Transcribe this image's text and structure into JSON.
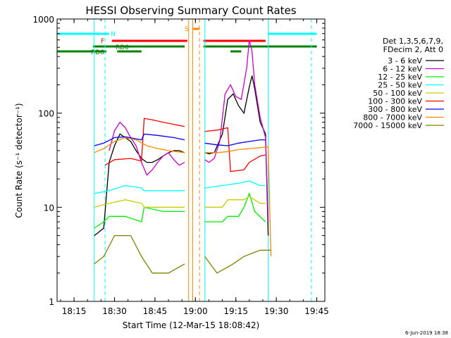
{
  "chart_data": {
    "type": "line",
    "title": "HESSI Observing Summary Count Rates",
    "xlabel": "Start Time (12-Mar-15 18:08:42)",
    "ylabel": "Count Rate (s⁻¹ detector⁻¹)",
    "y_scale": "log",
    "ylim": [
      1,
      1000
    ],
    "xlim": [
      "18:08:42",
      "19:48:00"
    ],
    "x_tick_labels": [
      "18:15",
      "18:30",
      "18:45",
      "19:00",
      "19:15",
      "19:30",
      "19:45"
    ],
    "y_tick_labels": [
      "1",
      "10",
      "100",
      "1000"
    ],
    "legend": {
      "position": "right",
      "header": [
        "Det 1,3,5,6,7,9,",
        "FDecim 2, Att 0"
      ],
      "entries": [
        {
          "label": "3 - 6 keV",
          "color": "#000000"
        },
        {
          "label": "6 - 12 keV",
          "color": "#cc00cc"
        },
        {
          "label": "12 - 25 keV",
          "color": "#00ee00"
        },
        {
          "label": "25 - 50 keV",
          "color": "#00ffff"
        },
        {
          "label": "50 - 100 keV",
          "color": "#cccc00"
        },
        {
          "label": "100 - 300 keV",
          "color": "#ff0000"
        },
        {
          "label": "300 - 800 keV",
          "color": "#0000ff"
        },
        {
          "label": "800 - 7000 keV",
          "color": "#ff8800"
        },
        {
          "label": "7000 - 15000 keV",
          "color": "#808000"
        }
      ]
    },
    "flag_labels": {
      "N": "N",
      "F": "F",
      "RD0": "RD0",
      "RD6": "RD6",
      "S": "S"
    },
    "flag_bars": [
      {
        "label": "N",
        "color": "#00ffff",
        "segments": [
          [
            "18:08:42",
            "18:28:00"
          ],
          [
            "19:27:00",
            "19:45:00"
          ]
        ]
      },
      {
        "label": "F",
        "color": "#ff0000",
        "segments": [
          [
            "18:29:00",
            "18:57:00"
          ],
          [
            "19:03:00",
            "19:26:00"
          ]
        ]
      },
      {
        "label": "RD0",
        "color": "#008000",
        "segments": [
          [
            "18:22:00",
            "18:56:00"
          ],
          [
            "19:03:00",
            "19:45:00"
          ]
        ]
      },
      {
        "label": "RD6",
        "color": "#008000",
        "segments": [
          [
            "18:08:42",
            "18:27:00"
          ],
          [
            "18:31:00",
            "18:40:00"
          ],
          [
            "19:13:00",
            "19:17:00"
          ]
        ]
      },
      {
        "label": "S",
        "color": "#ff8800",
        "segments": [
          [
            "18:59:00",
            "19:01:30"
          ]
        ]
      }
    ],
    "vlines": [
      {
        "time": "18:22:30",
        "color": "#00ffff",
        "style": "solid"
      },
      {
        "time": "18:26:30",
        "color": "#00ffff",
        "style": "dashed"
      },
      {
        "time": "18:57:30",
        "color": "#ff8800",
        "style": "solid"
      },
      {
        "time": "18:59:00",
        "color": "#ff8800",
        "style": "solid"
      },
      {
        "time": "19:01:30",
        "color": "#ff8800",
        "style": "dashed"
      },
      {
        "time": "19:03:30",
        "color": "#00ffff",
        "style": "solid"
      },
      {
        "time": "19:27:00",
        "color": "#00ffff",
        "style": "solid"
      },
      {
        "time": "19:43:00",
        "color": "#00ffff",
        "style": "dashed"
      }
    ],
    "series": [
      {
        "name": "3 - 6 keV",
        "color": "#000000",
        "segments": [
          [
            [
              "18:22:30",
              5
            ],
            [
              "18:26:00",
              6
            ],
            [
              "18:28:00",
              30
            ],
            [
              "18:30:00",
              45
            ],
            [
              "18:32:00",
              60
            ],
            [
              "18:34:00",
              55
            ],
            [
              "18:36:00",
              50
            ],
            [
              "18:38:00",
              40
            ],
            [
              "18:40:00",
              33
            ],
            [
              "18:42:00",
              30
            ],
            [
              "18:44:00",
              30
            ],
            [
              "18:46:00",
              32
            ],
            [
              "18:48:00",
              35
            ],
            [
              "18:50:00",
              38
            ],
            [
              "18:52:00",
              40
            ],
            [
              "18:54:00",
              40
            ],
            [
              "18:56:00",
              38
            ]
          ],
          [
            [
              "19:03:30",
              38
            ],
            [
              "19:05:00",
              37
            ],
            [
              "19:07:00",
              38
            ],
            [
              "19:10:00",
              60
            ],
            [
              "19:12:00",
              140
            ],
            [
              "19:14:00",
              160
            ],
            [
              "19:16:00",
              120
            ],
            [
              "19:18:00",
              100
            ],
            [
              "19:20:00",
              190
            ],
            [
              "19:21:00",
              250
            ],
            [
              "19:22:00",
              180
            ],
            [
              "19:24:00",
              80
            ],
            [
              "19:26:00",
              60
            ],
            [
              "19:27:00",
              5
            ]
          ]
        ]
      },
      {
        "name": "6 - 12 keV",
        "color": "#cc00cc",
        "segments": [
          [
            [
              "18:28:00",
              40
            ],
            [
              "18:30:00",
              65
            ],
            [
              "18:32:00",
              80
            ],
            [
              "18:34:00",
              70
            ],
            [
              "18:36:00",
              55
            ],
            [
              "18:38:00",
              45
            ],
            [
              "18:40:00",
              30
            ],
            [
              "18:42:00",
              22
            ],
            [
              "18:44:00",
              25
            ],
            [
              "18:46:00",
              30
            ],
            [
              "18:48:00",
              35
            ],
            [
              "18:50:00",
              38
            ],
            [
              "18:52:00",
              32
            ],
            [
              "18:54:00",
              28
            ],
            [
              "18:56:00",
              30
            ]
          ],
          [
            [
              "19:03:30",
              32
            ],
            [
              "19:05:00",
              30
            ],
            [
              "19:07:00",
              33
            ],
            [
              "19:09:00",
              50
            ],
            [
              "19:11:00",
              160
            ],
            [
              "19:13:00",
              200
            ],
            [
              "19:15:00",
              150
            ],
            [
              "19:17:00",
              140
            ],
            [
              "19:19:00",
              300
            ],
            [
              "19:20:00",
              600
            ],
            [
              "19:21:00",
              450
            ],
            [
              "19:22:00",
              200
            ],
            [
              "19:24:00",
              90
            ],
            [
              "19:26:00",
              55
            ],
            [
              "19:27:00",
              7
            ]
          ]
        ]
      },
      {
        "name": "12 - 25 keV",
        "color": "#00ee00",
        "segments": [
          [
            [
              "18:22:30",
              6
            ],
            [
              "18:26:00",
              7
            ],
            [
              "18:28:00",
              8
            ],
            [
              "18:34:00",
              8
            ],
            [
              "18:40:00",
              7
            ],
            [
              "18:41:00",
              10
            ],
            [
              "18:48:00",
              9
            ],
            [
              "18:54:00",
              9
            ],
            [
              "18:56:00",
              9
            ]
          ],
          [
            [
              "19:03:30",
              7
            ],
            [
              "19:10:00",
              7
            ],
            [
              "19:12:00",
              8
            ],
            [
              "19:16:00",
              8
            ],
            [
              "19:18:00",
              10
            ],
            [
              "19:20:00",
              14
            ],
            [
              "19:22:00",
              9
            ],
            [
              "19:26:00",
              7
            ]
          ]
        ]
      },
      {
        "name": "25 - 50 keV",
        "color": "#00ffff",
        "segments": [
          [
            [
              "18:22:30",
              14
            ],
            [
              "18:28:00",
              15
            ],
            [
              "18:34:00",
              17
            ],
            [
              "18:40:00",
              16
            ],
            [
              "18:41:00",
              15
            ],
            [
              "18:48:00",
              15
            ],
            [
              "18:56:00",
              15
            ]
          ],
          [
            [
              "19:03:30",
              16
            ],
            [
              "19:10:00",
              17
            ],
            [
              "19:16:00",
              18
            ],
            [
              "19:20:00",
              19
            ],
            [
              "19:24:00",
              17
            ],
            [
              "19:26:00",
              17
            ]
          ]
        ]
      },
      {
        "name": "50 - 100 keV",
        "color": "#cccc00",
        "segments": [
          [
            [
              "18:22:30",
              10
            ],
            [
              "18:28:00",
              11
            ],
            [
              "18:34:00",
              12
            ],
            [
              "18:40:00",
              11
            ],
            [
              "18:41:00",
              10
            ],
            [
              "18:48:00",
              10
            ],
            [
              "18:56:00",
              10
            ]
          ],
          [
            [
              "19:03:30",
              10
            ],
            [
              "19:10:00",
              10
            ],
            [
              "19:12:00",
              12
            ],
            [
              "19:18:00",
              12
            ],
            [
              "19:20:00",
              13
            ],
            [
              "19:24:00",
              11
            ],
            [
              "19:26:00",
              11
            ]
          ]
        ]
      },
      {
        "name": "100 - 300 keV",
        "color": "#ff0000",
        "segments": [
          [
            [
              "18:26:30",
              28
            ],
            [
              "18:30:00",
              32
            ],
            [
              "18:36:00",
              33
            ],
            [
              "18:40:00",
              31
            ],
            [
              "18:41:00",
              88
            ],
            [
              "18:44:00",
              85
            ],
            [
              "18:48:00",
              80
            ],
            [
              "18:52:00",
              76
            ],
            [
              "18:56:00",
              72
            ]
          ],
          [
            [
              "19:03:30",
              64
            ],
            [
              "19:08:00",
              66
            ],
            [
              "19:12:00",
              70
            ],
            [
              "19:13:00",
              24
            ],
            [
              "19:18:00",
              25
            ],
            [
              "19:20:00",
              30
            ],
            [
              "19:24:00",
              35
            ],
            [
              "19:26:00",
              36
            ]
          ]
        ]
      },
      {
        "name": "300 - 800 keV",
        "color": "#0000ff",
        "segments": [
          [
            [
              "18:22:30",
              45
            ],
            [
              "18:26:00",
              48
            ],
            [
              "18:30:00",
              55
            ],
            [
              "18:34:00",
              56
            ],
            [
              "18:40:00",
              52
            ],
            [
              "18:41:00",
              60
            ],
            [
              "18:46:00",
              58
            ],
            [
              "18:52:00",
              55
            ],
            [
              "18:56:00",
              52
            ]
          ],
          [
            [
              "19:03:30",
              48
            ],
            [
              "19:08:00",
              46
            ],
            [
              "19:12:00",
              45
            ],
            [
              "19:16:00",
              48
            ],
            [
              "19:20:00",
              50
            ],
            [
              "19:24:00",
              52
            ],
            [
              "19:26:00",
              52
            ]
          ]
        ]
      },
      {
        "name": "800 - 7000 keV",
        "color": "#ff8800",
        "segments": [
          [
            [
              "18:22:30",
              38
            ],
            [
              "18:26:00",
              42
            ],
            [
              "18:30:00",
              50
            ],
            [
              "18:34:00",
              55
            ],
            [
              "18:38:00",
              52
            ],
            [
              "18:42:00",
              45
            ],
            [
              "18:46:00",
              42
            ],
            [
              "18:50:00",
              40
            ],
            [
              "18:56:00",
              38
            ]
          ],
          [
            [
              "19:03:30",
              38
            ],
            [
              "19:08:00",
              38
            ],
            [
              "19:12:00",
              39
            ],
            [
              "19:16:00",
              41
            ],
            [
              "19:20:00",
              42
            ],
            [
              "19:24:00",
              43
            ],
            [
              "19:27:00",
              44
            ],
            [
              "19:28:00",
              3
            ]
          ]
        ]
      },
      {
        "name": "7000 - 15000 keV",
        "color": "#808000",
        "segments": [
          [
            [
              "18:22:30",
              2.5
            ],
            [
              "18:26:00",
              3
            ],
            [
              "18:30:00",
              5
            ],
            [
              "18:36:00",
              5
            ],
            [
              "18:40:00",
              3
            ],
            [
              "18:44:00",
              2
            ],
            [
              "18:50:00",
              2
            ],
            [
              "18:56:00",
              2.5
            ]
          ],
          [
            [
              "19:03:30",
              3
            ],
            [
              "19:08:00",
              2
            ],
            [
              "19:14:00",
              2.5
            ],
            [
              "19:18:00",
              3
            ],
            [
              "19:24:00",
              3.5
            ],
            [
              "19:28:00",
              3.5
            ]
          ]
        ]
      }
    ]
  },
  "footer_date": "6-Jun-2019 18:38"
}
